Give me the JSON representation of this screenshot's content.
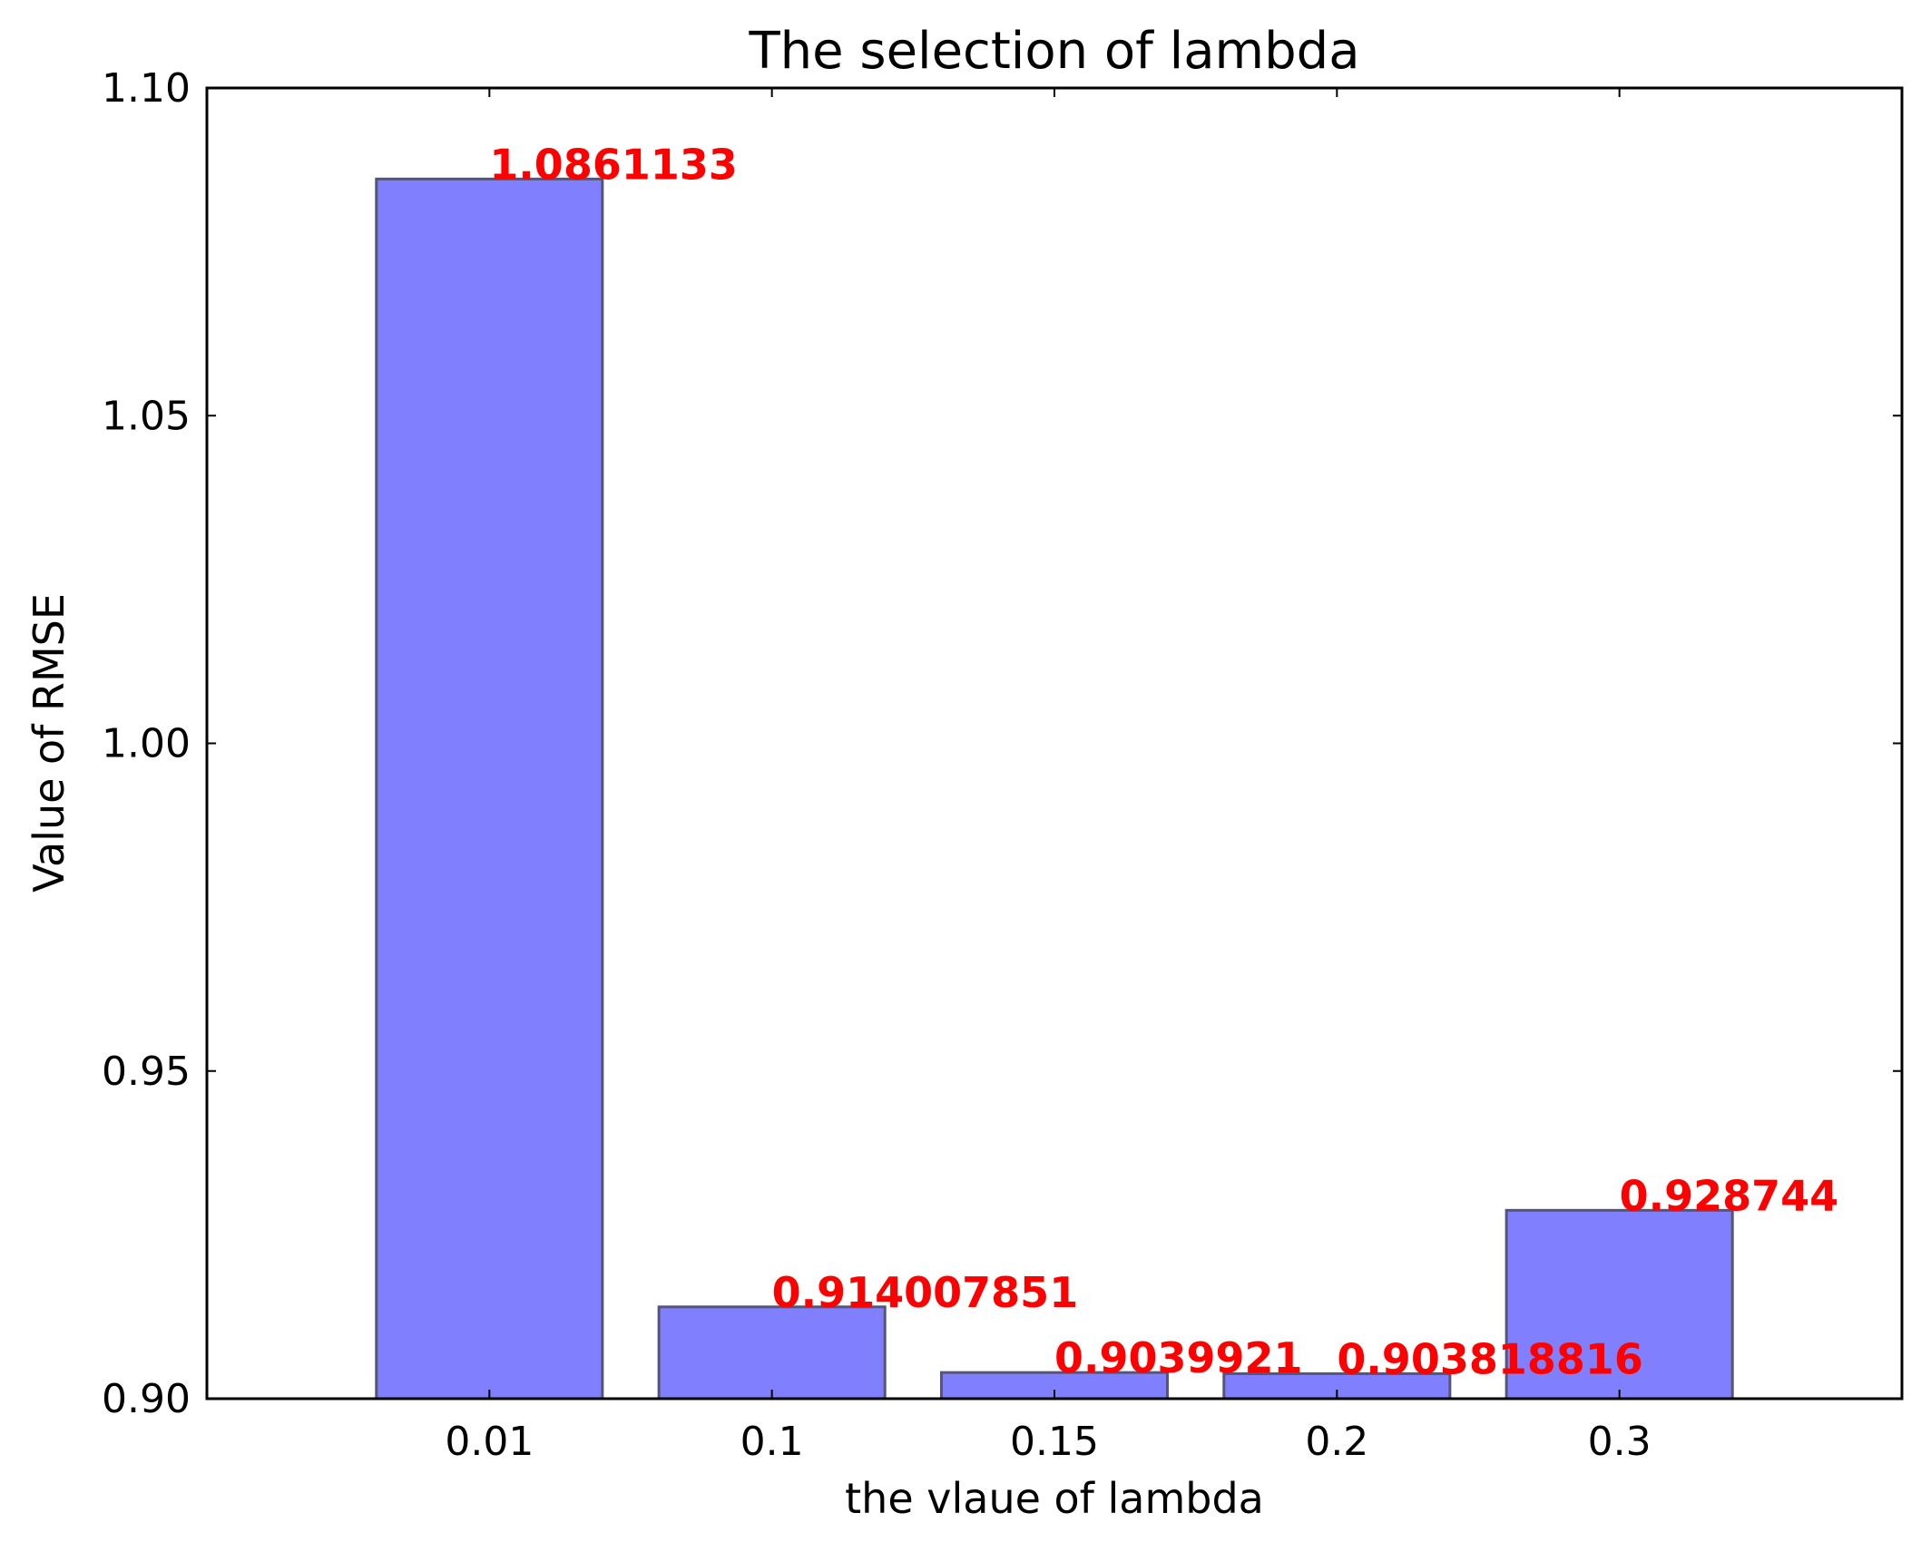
{
  "chart_data": {
    "type": "bar",
    "title": "The selection of lambda",
    "xlabel": "the vlaue of lambda",
    "ylabel": "Value of RMSE",
    "categories": [
      "0.01",
      "0.1",
      "0.15",
      "0.2",
      "0.3"
    ],
    "values": [
      1.0861133,
      0.914007851,
      0.9039921,
      0.903818816,
      0.928744
    ],
    "data_labels": [
      "1.0861133",
      "0.914007851",
      "0.9039921",
      "0.903818816",
      "0.928744"
    ],
    "ylim": [
      0.9,
      1.1
    ],
    "yticks": [
      0.9,
      0.95,
      1.0,
      1.05,
      1.1
    ],
    "ytick_labels": [
      "0.90",
      "0.95",
      "1.00",
      "1.05",
      "1.10"
    ],
    "grid": false,
    "legend": false,
    "colors": {
      "bar_fill": "#8080ff",
      "bar_edge": "#555577",
      "data_label": "#ff0000",
      "axes": "#000000"
    }
  }
}
